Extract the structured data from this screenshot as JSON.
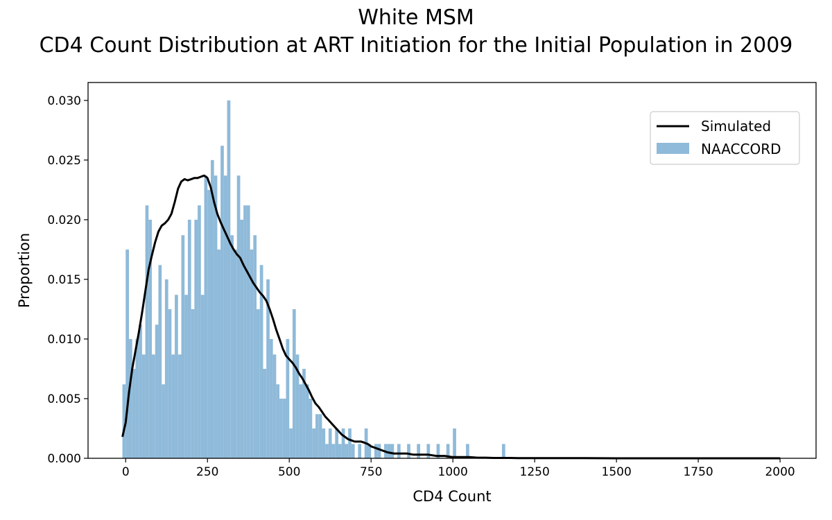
{
  "chart_data": {
    "type": "bar",
    "title": "White MSM",
    "subtitle": "CD4 Count Distribution at ART Initiation for the Initial Population in 2009",
    "xlabel": "CD4 Count",
    "ylabel": "Proportion",
    "xlim": [
      -115,
      2110
    ],
    "ylim": [
      0,
      0.0315
    ],
    "xticks": [
      0,
      250,
      500,
      750,
      1000,
      1250,
      1500,
      1750,
      2000
    ],
    "xtick_labels": [
      "0",
      "250",
      "500",
      "750",
      "1000",
      "1250",
      "1500",
      "1750",
      "2000"
    ],
    "yticks": [
      0.0,
      0.005,
      0.01,
      0.015,
      0.02,
      0.025,
      0.03
    ],
    "ytick_labels": [
      "0.000",
      "0.005",
      "0.010",
      "0.015",
      "0.020",
      "0.025",
      "0.030"
    ],
    "grid": false,
    "legend_position": "top-right",
    "histogram": {
      "name": "NAACCORD",
      "color": "#8fbad9",
      "bin_width": 10,
      "bins": [
        [
          -5,
          0.0062
        ],
        [
          5,
          0.0175
        ],
        [
          15,
          0.01
        ],
        [
          25,
          0.0075
        ],
        [
          35,
          0.01
        ],
        [
          45,
          0.0112
        ],
        [
          55,
          0.0087
        ],
        [
          65,
          0.0212
        ],
        [
          75,
          0.02
        ],
        [
          85,
          0.0087
        ],
        [
          95,
          0.0112
        ],
        [
          105,
          0.0162
        ],
        [
          115,
          0.0062
        ],
        [
          125,
          0.015
        ],
        [
          135,
          0.0125
        ],
        [
          145,
          0.0087
        ],
        [
          155,
          0.0137
        ],
        [
          165,
          0.0087
        ],
        [
          175,
          0.0187
        ],
        [
          185,
          0.0137
        ],
        [
          195,
          0.02
        ],
        [
          205,
          0.0125
        ],
        [
          215,
          0.02
        ],
        [
          225,
          0.0212
        ],
        [
          235,
          0.0137
        ],
        [
          245,
          0.0237
        ],
        [
          255,
          0.0225
        ],
        [
          265,
          0.025
        ],
        [
          275,
          0.0237
        ],
        [
          285,
          0.0175
        ],
        [
          295,
          0.0262
        ],
        [
          305,
          0.0237
        ],
        [
          315,
          0.03
        ],
        [
          325,
          0.0187
        ],
        [
          335,
          0.0175
        ],
        [
          345,
          0.0237
        ],
        [
          355,
          0.02
        ],
        [
          365,
          0.0212
        ],
        [
          375,
          0.0212
        ],
        [
          385,
          0.0175
        ],
        [
          395,
          0.0187
        ],
        [
          405,
          0.0125
        ],
        [
          415,
          0.0162
        ],
        [
          425,
          0.0075
        ],
        [
          435,
          0.015
        ],
        [
          445,
          0.01
        ],
        [
          455,
          0.0087
        ],
        [
          465,
          0.0062
        ],
        [
          475,
          0.005
        ],
        [
          485,
          0.005
        ],
        [
          495,
          0.01
        ],
        [
          505,
          0.0025
        ],
        [
          515,
          0.0125
        ],
        [
          525,
          0.0087
        ],
        [
          535,
          0.0062
        ],
        [
          545,
          0.0075
        ],
        [
          555,
          0.0062
        ],
        [
          565,
          0.005
        ],
        [
          575,
          0.0025
        ],
        [
          585,
          0.0037
        ],
        [
          595,
          0.0037
        ],
        [
          605,
          0.0025
        ],
        [
          615,
          0.0012
        ],
        [
          625,
          0.0025
        ],
        [
          635,
          0.0012
        ],
        [
          645,
          0.0025
        ],
        [
          655,
          0.0012
        ],
        [
          665,
          0.0025
        ],
        [
          675,
          0.0012
        ],
        [
          685,
          0.0025
        ],
        [
          695,
          0.0012
        ],
        [
          715,
          0.0012
        ],
        [
          735,
          0.0025
        ],
        [
          745,
          0.0012
        ],
        [
          765,
          0.0012
        ],
        [
          775,
          0.0012
        ],
        [
          795,
          0.0012
        ],
        [
          805,
          0.0012
        ],
        [
          815,
          0.0012
        ],
        [
          835,
          0.0012
        ],
        [
          865,
          0.0012
        ],
        [
          895,
          0.0012
        ],
        [
          925,
          0.0012
        ],
        [
          955,
          0.0012
        ],
        [
          985,
          0.0012
        ],
        [
          1005,
          0.0025
        ],
        [
          1045,
          0.0012
        ],
        [
          1155,
          0.0012
        ]
      ]
    },
    "series": [
      {
        "name": "Simulated",
        "type": "line",
        "color": "#000000",
        "x": [
          -10,
          0,
          10,
          20,
          30,
          40,
          50,
          60,
          70,
          80,
          90,
          100,
          110,
          120,
          130,
          140,
          150,
          160,
          170,
          180,
          190,
          200,
          210,
          220,
          230,
          240,
          250,
          260,
          270,
          280,
          290,
          300,
          310,
          320,
          330,
          340,
          350,
          360,
          370,
          380,
          390,
          400,
          410,
          420,
          430,
          440,
          450,
          460,
          470,
          480,
          490,
          500,
          510,
          520,
          530,
          540,
          550,
          560,
          570,
          580,
          590,
          600,
          610,
          620,
          630,
          640,
          650,
          660,
          670,
          680,
          690,
          700,
          710,
          720,
          730,
          740,
          750,
          760,
          770,
          780,
          790,
          800,
          820,
          840,
          860,
          880,
          900,
          925,
          950,
          975,
          1000,
          1025,
          1050,
          1075,
          1100,
          1125,
          1150,
          1175,
          1200,
          1250,
          1300,
          1350,
          1400,
          1500,
          1600,
          1700,
          1800,
          1900,
          2000
        ],
        "y": [
          0.0018,
          0.003,
          0.0055,
          0.0075,
          0.009,
          0.0105,
          0.0122,
          0.014,
          0.0158,
          0.017,
          0.0181,
          0.019,
          0.0195,
          0.0197,
          0.02,
          0.0205,
          0.0215,
          0.0226,
          0.0232,
          0.0234,
          0.0233,
          0.0234,
          0.0235,
          0.0235,
          0.0236,
          0.0237,
          0.0235,
          0.0227,
          0.0215,
          0.0205,
          0.0198,
          0.0192,
          0.0186,
          0.018,
          0.0175,
          0.0171,
          0.0168,
          0.0162,
          0.0157,
          0.0152,
          0.0147,
          0.0143,
          0.0139,
          0.0136,
          0.0132,
          0.0125,
          0.0117,
          0.0108,
          0.01,
          0.0092,
          0.0086,
          0.0083,
          0.008,
          0.0076,
          0.0071,
          0.0067,
          0.0062,
          0.0057,
          0.0051,
          0.0046,
          0.0043,
          0.0039,
          0.0035,
          0.0032,
          0.0029,
          0.0026,
          0.0023,
          0.002,
          0.0018,
          0.0016,
          0.0015,
          0.0014,
          0.0014,
          0.0014,
          0.0013,
          0.0012,
          0.001,
          0.0009,
          0.0008,
          0.0007,
          0.0006,
          0.0005,
          0.0004,
          0.0004,
          0.0004,
          0.0003,
          0.0003,
          0.0003,
          0.0002,
          0.0002,
          0.0001,
          0.0001,
          0.0001,
          5e-05,
          5e-05,
          3e-05,
          3e-05,
          3e-05,
          2e-05,
          2e-05,
          1e-05,
          1e-05,
          1e-05,
          0.0,
          0.0,
          0.0,
          0.0,
          0.0,
          0.0
        ]
      }
    ]
  }
}
